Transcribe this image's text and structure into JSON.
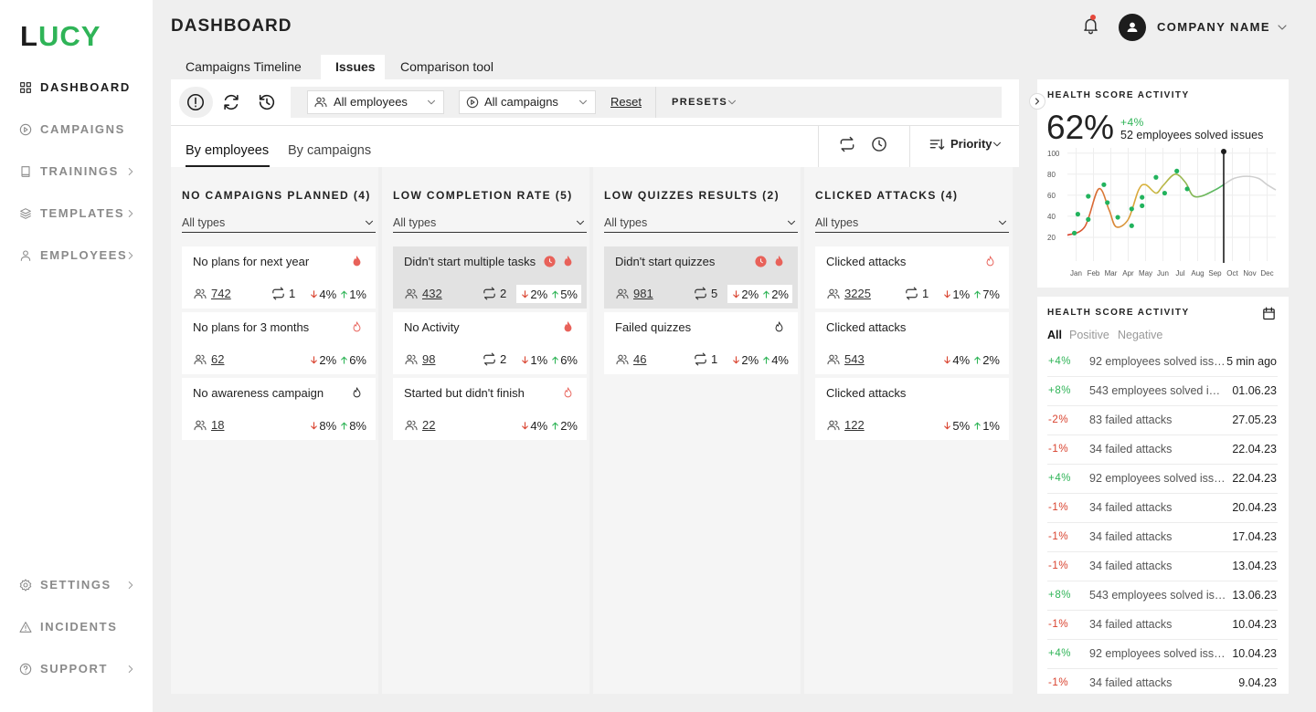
{
  "sidebar": {
    "logo_first": "L",
    "logo_rest": "UCY",
    "nav": [
      {
        "label": "DASHBOARD",
        "icon": "grid",
        "chevron": false,
        "active": true
      },
      {
        "label": "CAMPAIGNS",
        "icon": "play",
        "chevron": false,
        "active": false
      },
      {
        "label": "TRAININGS",
        "icon": "book",
        "chevron": true,
        "active": false
      },
      {
        "label": "TEMPLATES",
        "icon": "layers",
        "chevron": true,
        "active": false
      },
      {
        "label": "EMPLOYEES",
        "icon": "user",
        "chevron": true,
        "active": false
      }
    ],
    "bottom_nav": [
      {
        "label": "SETTINGS",
        "icon": "gear",
        "chevron": true
      },
      {
        "label": "INCIDENTS",
        "icon": "warn",
        "chevron": false
      },
      {
        "label": "SUPPORT",
        "icon": "help",
        "chevron": true
      }
    ]
  },
  "header": {
    "title": "DASHBOARD",
    "company": "COMPANY NAME"
  },
  "tabs": [
    "Campaigns Timeline",
    "Issues",
    "Comparison tool"
  ],
  "active_tab": 1,
  "filters": {
    "employees": "All employees",
    "campaigns": "All campaigns",
    "reset": "Reset",
    "presets": "PRESETS"
  },
  "subtabs": [
    "By employees",
    "By campaigns"
  ],
  "active_subtab": 0,
  "sort": "Priority",
  "columns": [
    {
      "title": "NO CAMPAIGNS PLANNED (4)",
      "filter": "All types",
      "cards": [
        {
          "title": "No plans for next year",
          "flame": "filled",
          "clock": false,
          "highlighted": false,
          "people": 742,
          "repeats": 1,
          "down": "4%",
          "up": "1%"
        },
        {
          "title": "No plans for 3 months",
          "flame": "outline",
          "clock": false,
          "highlighted": false,
          "people": 62,
          "repeats": null,
          "down": "2%",
          "up": "6%"
        },
        {
          "title": "No awareness campaign",
          "flame": "dark",
          "clock": false,
          "highlighted": false,
          "people": 18,
          "repeats": null,
          "down": "8%",
          "up": "8%"
        }
      ]
    },
    {
      "title": "LOW COMPLETION RATE (5)",
      "filter": "All types",
      "cards": [
        {
          "title": "Didn't start multiple tasks",
          "flame": "filled",
          "clock": true,
          "highlighted": true,
          "people": 432,
          "repeats": 2,
          "down": "2%",
          "up": "5%"
        },
        {
          "title": "No Activity",
          "flame": "filled",
          "clock": false,
          "highlighted": false,
          "people": 98,
          "repeats": 2,
          "down": "1%",
          "up": "6%"
        },
        {
          "title": "Started but didn't finish",
          "flame": "outline",
          "clock": false,
          "highlighted": false,
          "people": 22,
          "repeats": null,
          "down": "4%",
          "up": "2%"
        }
      ]
    },
    {
      "title": "LOW QUIZZES RESULTS (2)",
      "filter": "All types",
      "cards": [
        {
          "title": "Didn't start quizzes",
          "flame": "filled",
          "clock": true,
          "highlighted": true,
          "people": 981,
          "repeats": 5,
          "down": "2%",
          "up": "2%"
        },
        {
          "title": "Failed quizzes",
          "flame": "dark",
          "clock": false,
          "highlighted": false,
          "people": 46,
          "repeats": 1,
          "down": "2%",
          "up": "4%"
        }
      ]
    },
    {
      "title": "CLICKED ATTACKS (4)",
      "filter": "All types",
      "cards": [
        {
          "title": "Clicked attacks",
          "flame": "outline",
          "clock": false,
          "highlighted": false,
          "people": 3225,
          "repeats": 1,
          "down": "1%",
          "up": "7%"
        },
        {
          "title": "Clicked attacks",
          "flame": null,
          "clock": false,
          "highlighted": false,
          "people": 543,
          "repeats": null,
          "down": "4%",
          "up": "2%"
        },
        {
          "title": "Clicked attacks",
          "flame": null,
          "clock": false,
          "highlighted": false,
          "people": 122,
          "repeats": null,
          "down": "5%",
          "up": "1%"
        }
      ]
    }
  ],
  "health": {
    "title": "HEALTH SCORE ACTIVITY",
    "score": "62%",
    "change": "+4%",
    "summary": "52 employees solved issues",
    "chart_data": {
      "type": "line",
      "categories": [
        "Jan",
        "Feb",
        "Mar",
        "Apr",
        "May",
        "Jun",
        "Jul",
        "Aug",
        "Sep",
        "Oct",
        "Nov",
        "Dec"
      ],
      "xlim": [
        -0.5,
        11.5
      ],
      "ylim": [
        0,
        105
      ],
      "yticks": [
        20,
        40,
        60,
        80,
        100
      ],
      "grid": true,
      "series": [
        {
          "colors": [
            "#d9432f",
            "#d9b53c",
            "#4cb866"
          ],
          "x": [
            -0.5,
            0.5,
            1.3,
            1.9,
            2.3,
            3,
            3.6,
            4,
            4.6,
            5,
            5.7,
            6.3,
            6.7,
            7.2,
            8,
            8.5
          ],
          "values": [
            22,
            30,
            66,
            46,
            30,
            37,
            65,
            70,
            62,
            69,
            80,
            72,
            60,
            59,
            65,
            70
          ]
        },
        {
          "color": "#cfcfcf",
          "x": [
            8.5,
            9.1,
            9.8,
            10.5,
            11,
            11.5
          ],
          "values": [
            70,
            76,
            78,
            76,
            70,
            65
          ]
        }
      ],
      "points": {
        "color": "#22b35d",
        "x": [
          -0.1,
          0.1,
          0.7,
          0.7,
          1.6,
          1.8,
          2.4,
          3.2,
          3.2,
          3.8,
          3.8,
          4.6,
          5.1,
          5.8,
          6.4
        ],
        "values": [
          24,
          42,
          37,
          59,
          70,
          53,
          39,
          47,
          31,
          58,
          50,
          77,
          62,
          83,
          66
        ]
      },
      "marker_x": 8.5
    }
  },
  "activity": {
    "title": "HEALTH SCORE ACTIVITY",
    "filters": [
      "All",
      "Positive",
      "Negative"
    ],
    "active_filter": 0,
    "rows": [
      {
        "change": "+4%",
        "text": "92 employees solved iss…",
        "time": "5 min ago"
      },
      {
        "change": "+8%",
        "text": "543 employees solved i…",
        "time": "01.06.23"
      },
      {
        "change": "-2%",
        "text": "83 failed attacks",
        "time": "27.05.23"
      },
      {
        "change": "-1%",
        "text": "34 failed attacks",
        "time": "22.04.23"
      },
      {
        "change": "+4%",
        "text": "92 employees solved iss…",
        "time": "22.04.23"
      },
      {
        "change": "-1%",
        "text": "34 failed attacks",
        "time": "20.04.23"
      },
      {
        "change": "-1%",
        "text": "34 failed attacks",
        "time": "17.04.23"
      },
      {
        "change": "-1%",
        "text": "34 failed attacks",
        "time": "13.04.23"
      },
      {
        "change": "+8%",
        "text": "543 employees solved is…",
        "time": "13.06.23"
      },
      {
        "change": "-1%",
        "text": "34 failed attacks",
        "time": "10.04.23"
      },
      {
        "change": "+4%",
        "text": "92 employees solved iss…",
        "time": "10.04.23"
      },
      {
        "change": "-1%",
        "text": "34 failed attacks",
        "time": "9.04.23"
      }
    ]
  }
}
